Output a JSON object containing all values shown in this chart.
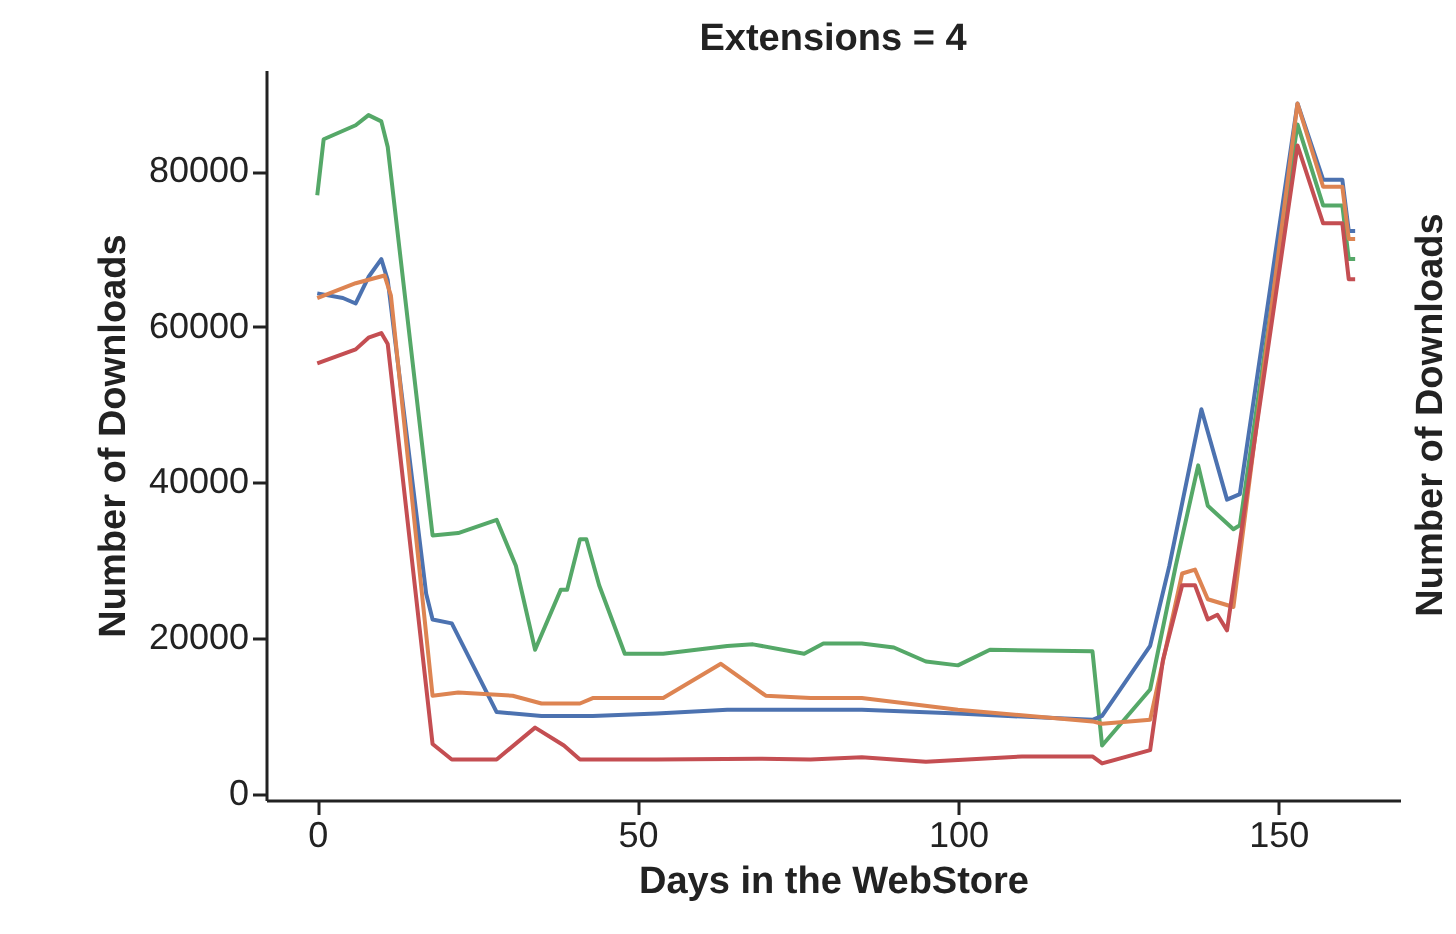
{
  "chart_data": {
    "type": "line",
    "title": "Extensions = 4",
    "xlabel": "Days in the WebStore",
    "ylabel": "Number of Downloads",
    "annotations": [
      "Number of Downloads"
    ],
    "xlim": [
      -8,
      169
    ],
    "ylim": [
      -800,
      93000
    ],
    "xticks": [
      0,
      50,
      100,
      150
    ],
    "yticks": [
      0,
      20000,
      40000,
      60000,
      80000
    ],
    "grid": false,
    "legend": false,
    "line_style": "solid",
    "marker": "none",
    "series": [
      {
        "color": "#55a868",
        "x": [
          0,
          1,
          6,
          8,
          10,
          11,
          18,
          22,
          28,
          31,
          34,
          38,
          39,
          41,
          42,
          44,
          48,
          54,
          64,
          68,
          76,
          79,
          85,
          90,
          95,
          100,
          105,
          121,
          122.5,
          130,
          134,
          137.5,
          139,
          143,
          144,
          153,
          157,
          160,
          161,
          162
        ],
        "values": [
          76900,
          84100,
          85900,
          87200,
          86400,
          83100,
          33200,
          33500,
          35200,
          29300,
          18500,
          26200,
          26200,
          32700,
          32700,
          26800,
          18000,
          18000,
          19000,
          19200,
          18000,
          19300,
          19300,
          18800,
          17000,
          16500,
          18500,
          18300,
          6200,
          13400,
          29300,
          42200,
          37000,
          34000,
          34500,
          86000,
          75600,
          75600,
          68700,
          68700
        ]
      },
      {
        "color": "#4c72b0",
        "x": [
          0,
          4,
          6,
          8,
          10,
          11,
          17,
          18,
          21,
          28,
          35,
          43,
          53,
          64,
          85,
          100,
          121,
          122.5,
          130,
          133,
          138,
          142,
          144,
          153,
          157,
          160,
          161,
          162
        ],
        "values": [
          64300,
          63700,
          63000,
          66400,
          68700,
          66000,
          25700,
          22400,
          21900,
          10500,
          10000,
          10000,
          10300,
          10800,
          10800,
          10300,
          9500,
          10000,
          19000,
          29300,
          49400,
          37800,
          38500,
          88700,
          78900,
          78900,
          72300,
          72300
        ]
      },
      {
        "color": "#dd8452",
        "x": [
          0,
          6,
          10.5,
          11.5,
          18,
          22,
          30.5,
          35,
          41,
          43,
          54,
          63,
          70,
          77,
          85,
          100,
          121,
          122.5,
          130,
          135,
          137,
          139,
          143,
          153,
          157,
          160,
          161,
          162
        ],
        "values": [
          63700,
          65600,
          66600,
          64000,
          12600,
          13000,
          12600,
          11600,
          11600,
          12300,
          12300,
          16700,
          12600,
          12300,
          12300,
          10800,
          9300,
          9000,
          9500,
          28300,
          28800,
          25000,
          24000,
          88700,
          78000,
          78000,
          71300,
          71300
        ]
      },
      {
        "color": "#c44e52",
        "x": [
          0,
          3,
          6,
          8,
          10,
          11,
          18,
          21,
          28,
          34,
          38.5,
          41,
          53,
          69,
          77,
          85,
          95,
          110,
          121,
          122.5,
          130,
          132,
          135,
          137,
          139,
          140.5,
          142,
          153,
          157,
          160,
          161,
          162
        ],
        "values": [
          55300,
          56200,
          57100,
          58600,
          59200,
          57800,
          6400,
          4400,
          4400,
          8500,
          6200,
          4400,
          4400,
          4500,
          4400,
          4700,
          4100,
          4800,
          4800,
          3900,
          5600,
          17200,
          26800,
          26800,
          22400,
          23000,
          21000,
          83300,
          73300,
          73300,
          66100,
          66100
        ]
      }
    ]
  }
}
